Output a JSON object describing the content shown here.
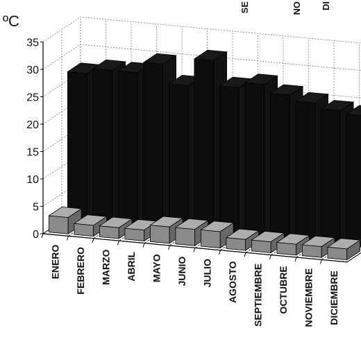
{
  "chart_data": {
    "type": "bar",
    "ylabel": "ºC",
    "ylim": [
      0,
      35
    ],
    "yticks": [
      "0",
      "5",
      "10",
      "15",
      "20",
      "25",
      "30",
      "35"
    ],
    "grid": true,
    "legend_position": "top-right",
    "legend_fragments": [
      "SE",
      "NO",
      "DI"
    ],
    "categories": [
      "ENERO",
      "FEBRERO",
      "MARZO",
      "ABRIL",
      "MAYO",
      "JUNIO",
      "JULIO",
      "AGOSTO",
      "SEPTIEMBRE",
      "OCTUBRE",
      "NOVIEMBRE",
      "DICIEMBRE"
    ],
    "series": [
      {
        "values": [
          3,
          2,
          2,
          2,
          3,
          3,
          3,
          2,
          2,
          2,
          2,
          2
        ],
        "color": "#8a8a8a"
      },
      {
        "values": [
          27,
          28,
          28,
          30,
          26.5,
          31.5,
          27,
          28,
          26.5,
          25.5,
          24.5,
          24
        ],
        "color": "#0d0d0d"
      }
    ]
  }
}
